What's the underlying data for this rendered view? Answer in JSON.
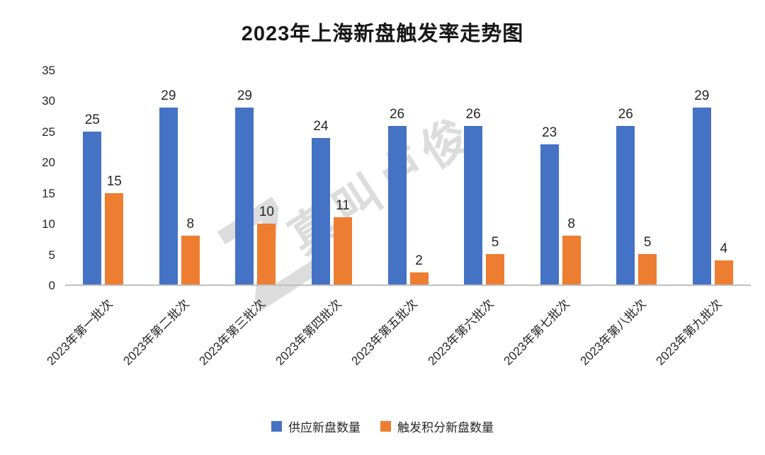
{
  "watermark": {
    "logo": "Z",
    "text": "真叫卢俊"
  },
  "chart_data": {
    "type": "bar",
    "title": "2023年上海新盘触发率走势图",
    "categories": [
      "2023年第一批次",
      "2023年第二批次",
      "2023年第三批次",
      "2023年第四批次",
      "2023年第五批次",
      "2023年第六批次",
      "2023年第七批次",
      "2023年第八批次",
      "2023年第九批次"
    ],
    "series": [
      {
        "name": "供应新盘数量",
        "color": "#4472C4",
        "values": [
          25,
          29,
          29,
          24,
          26,
          26,
          23,
          26,
          29
        ]
      },
      {
        "name": "触发积分新盘数量",
        "color": "#ED7D31",
        "values": [
          15,
          8,
          10,
          11,
          2,
          5,
          8,
          5,
          4
        ]
      }
    ],
    "ylim": [
      0,
      35
    ],
    "ytick_step": 5,
    "yticks": [
      0,
      5,
      10,
      15,
      20,
      25,
      30,
      35
    ],
    "grid": false,
    "legend_position": "bottom",
    "data_labels": true
  }
}
